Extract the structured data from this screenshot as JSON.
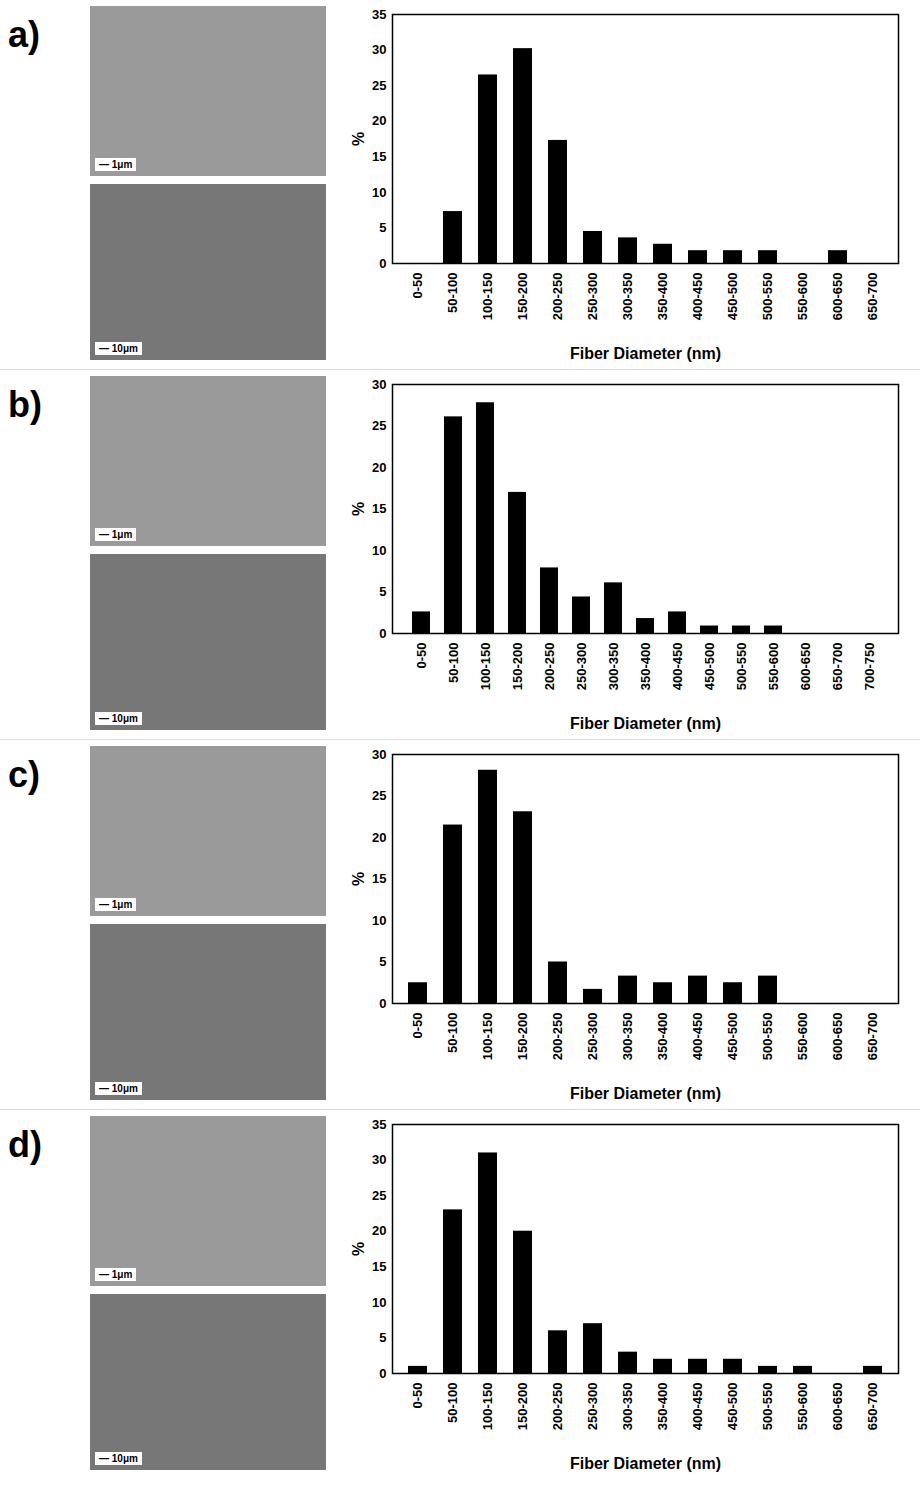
{
  "chart_data": [
    {
      "type": "bar",
      "title": "a)",
      "x_label": "Fiber Diameter (nm)",
      "y_label": "%",
      "color": "#000000",
      "grid": false,
      "annotations": [
        "1μm",
        "10μm"
      ],
      "categories": [
        "0-50",
        "50-100",
        "100-150",
        "150-200",
        "200-250",
        "250-300",
        "300-350",
        "350-400",
        "400-450",
        "450-500",
        "500-550",
        "550-600",
        "600-650",
        "650-700"
      ],
      "values": [
        0,
        7.3,
        26.5,
        30.2,
        17.3,
        4.5,
        3.6,
        2.7,
        1.8,
        1.8,
        1.8,
        0,
        1.8,
        0
      ],
      "ylim": [
        0,
        35
      ],
      "yticks": [
        0,
        5,
        10,
        15,
        20,
        25,
        30,
        35
      ]
    },
    {
      "type": "bar",
      "title": "b)",
      "x_label": "Fiber Diameter (nm)",
      "y_label": "%",
      "color": "#000000",
      "grid": false,
      "annotations": [
        "1μm",
        "10μm"
      ],
      "categories": [
        "0-50",
        "50-100",
        "100-150",
        "150-200",
        "200-250",
        "250-300",
        "300-350",
        "350-400",
        "400-450",
        "450-500",
        "500-550",
        "550-600",
        "600-650",
        "650-700",
        "700-750"
      ],
      "values": [
        2.6,
        26.1,
        27.8,
        17.0,
        7.9,
        4.4,
        6.1,
        1.8,
        2.6,
        0.9,
        0.9,
        0.9,
        0,
        0,
        0
      ],
      "ylim": [
        0,
        30
      ],
      "yticks": [
        0,
        5,
        10,
        15,
        20,
        25,
        30
      ]
    },
    {
      "type": "bar",
      "title": "c)",
      "x_label": "Fiber Diameter (nm)",
      "y_label": "%",
      "color": "#000000",
      "grid": false,
      "annotations": [
        "1μm",
        "10μm"
      ],
      "categories": [
        "0-50",
        "50-100",
        "100-150",
        "150-200",
        "200-250",
        "250-300",
        "300-350",
        "350-400",
        "400-450",
        "450-500",
        "500-550",
        "550-600",
        "600-650",
        "650-700"
      ],
      "values": [
        2.5,
        21.5,
        28.1,
        23.1,
        5.0,
        1.7,
        3.3,
        2.5,
        3.3,
        2.5,
        3.3,
        0,
        0,
        0
      ],
      "ylim": [
        0,
        30
      ],
      "yticks": [
        0,
        5,
        10,
        15,
        20,
        25,
        30
      ]
    },
    {
      "type": "bar",
      "title": "d)",
      "x_label": "Fiber Diameter (nm)",
      "y_label": "%",
      "color": "#000000",
      "grid": false,
      "annotations": [
        "1μm",
        "10μm"
      ],
      "categories": [
        "0-50",
        "50-100",
        "100-150",
        "150-200",
        "200-250",
        "250-300",
        "300-350",
        "350-400",
        "400-450",
        "450-500",
        "500-550",
        "550-600",
        "600-650",
        "650-700"
      ],
      "values": [
        1,
        23,
        31,
        20,
        6,
        7,
        3,
        2,
        2,
        2,
        1,
        1,
        0,
        1
      ],
      "ylim": [
        0,
        35
      ],
      "yticks": [
        0,
        5,
        10,
        15,
        20,
        25,
        30,
        35
      ]
    }
  ]
}
